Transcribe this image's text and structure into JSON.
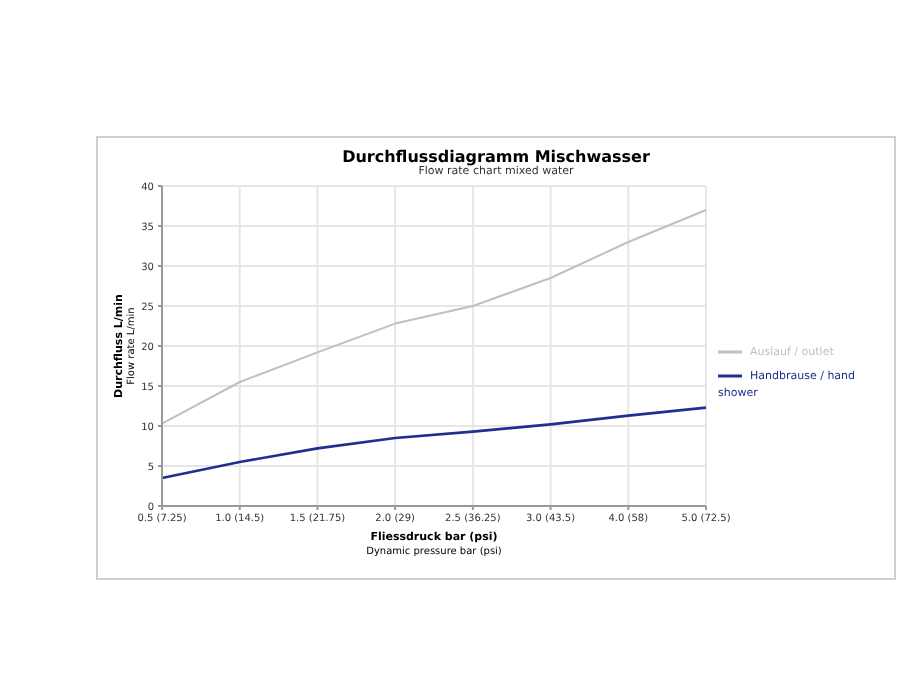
{
  "chart_data": {
    "type": "line",
    "title": "Durchflussdiagramm Mischwasser",
    "subtitle": "Flow rate chart mixed water",
    "xlabel": "Fliessdruck bar (psi)\nDynamic pressure bar (psi)",
    "ylabel": "Durchfluss L/min\nFlow rate L/min",
    "categories": [
      "0.5 (7.25)",
      "1.0 (14.5)",
      "1.5 (21.75)",
      "2.0 (29)",
      "2.5 (36.25)",
      "3.0 (43.5)",
      "4.0 (58)",
      "5.0 (72.5)"
    ],
    "series": [
      {
        "name": "Handbrause / hand shower",
        "color": "#1f2f8f",
        "values": [
          3.5,
          5.5,
          7.2,
          8.5,
          9.3,
          10.2,
          11.3,
          12.3
        ]
      },
      {
        "name": "Auslauf / outlet",
        "color": "#c0c0c0",
        "values": [
          10.3,
          15.5,
          19.2,
          22.8,
          25,
          28.5,
          33,
          37
        ]
      }
    ],
    "ylim": [
      0,
      40
    ],
    "yticks": [
      0,
      5,
      10,
      15,
      20,
      25,
      30,
      35,
      40
    ],
    "grid": true,
    "legend": "right",
    "marker": "none",
    "line_style": "solid"
  }
}
